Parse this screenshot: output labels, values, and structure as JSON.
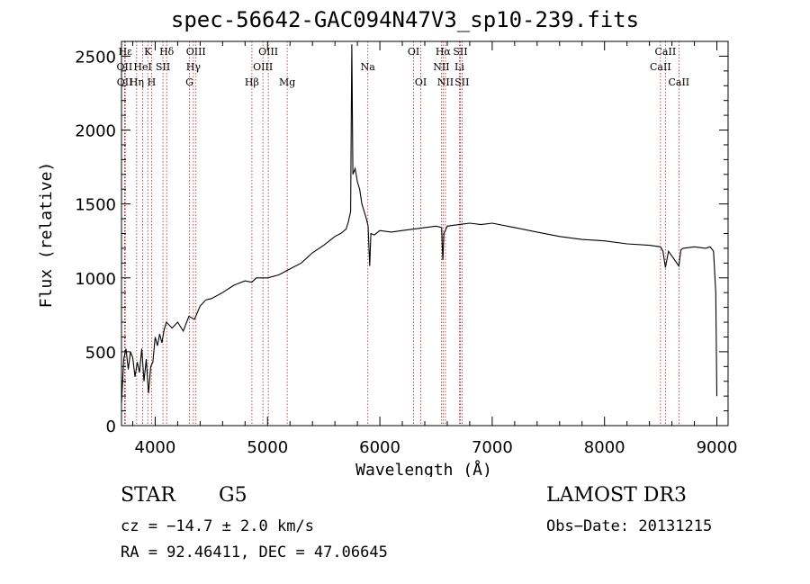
{
  "chart_data": {
    "type": "line",
    "title": "spec-56642-GAC094N47V3_sp10-239.fits",
    "xlabel": "Wavelength (Å)",
    "ylabel": "Flux (relative)",
    "xlim": [
      3700,
      9100
    ],
    "ylim": [
      0,
      2600
    ],
    "xticks": [
      "4000",
      "5000",
      "6000",
      "7000",
      "8000",
      "9000"
    ],
    "yticks": [
      "0",
      "500",
      "1000",
      "1500",
      "2000",
      "2500"
    ],
    "series": [
      {
        "name": "flux",
        "x": [
          3700,
          3720,
          3740,
          3760,
          3780,
          3800,
          3820,
          3840,
          3860,
          3880,
          3900,
          3920,
          3940,
          3960,
          3980,
          4000,
          4020,
          4040,
          4060,
          4080,
          4100,
          4150,
          4200,
          4250,
          4300,
          4350,
          4400,
          4450,
          4500,
          4600,
          4700,
          4800,
          4860,
          4900,
          5000,
          5100,
          5200,
          5300,
          5400,
          5500,
          5600,
          5650,
          5700,
          5720,
          5740,
          5750,
          5760,
          5780,
          5800,
          5820,
          5840,
          5860,
          5880,
          5895,
          5910,
          5920,
          5950,
          6000,
          6100,
          6200,
          6300,
          6400,
          6500,
          6550,
          6560,
          6563,
          6570,
          6600,
          6700,
          6800,
          6900,
          7000,
          7200,
          7400,
          7600,
          7800,
          8000,
          8200,
          8400,
          8498,
          8520,
          8542,
          8570,
          8662,
          8680,
          8700,
          8800,
          8900,
          8940,
          8970,
          8990,
          9000
        ],
        "y": [
          150,
          450,
          520,
          380,
          500,
          460,
          330,
          430,
          360,
          520,
          300,
          450,
          220,
          400,
          430,
          600,
          540,
          620,
          560,
          650,
          700,
          660,
          700,
          640,
          740,
          720,
          810,
          850,
          860,
          900,
          950,
          980,
          970,
          1000,
          1000,
          1020,
          1060,
          1100,
          1170,
          1220,
          1280,
          1300,
          1330,
          1380,
          1450,
          2580,
          1700,
          1740,
          1650,
          1600,
          1500,
          1450,
          1400,
          1350,
          1080,
          1300,
          1290,
          1320,
          1310,
          1320,
          1330,
          1340,
          1350,
          1340,
          1120,
          1150,
          1300,
          1350,
          1360,
          1370,
          1360,
          1370,
          1340,
          1310,
          1280,
          1260,
          1250,
          1230,
          1220,
          1210,
          1180,
          1070,
          1180,
          1080,
          1190,
          1200,
          1210,
          1200,
          1210,
          1180,
          900,
          200
        ]
      }
    ],
    "lines": [
      {
        "name": "Hε",
        "wl": 3734,
        "row": 0,
        "dx": 0
      },
      {
        "name": "OII",
        "wl": 3727,
        "row": 1,
        "dx": 0
      },
      {
        "name": "OII",
        "wl": 3729,
        "row": 2,
        "dx": 0
      },
      {
        "name": "Hη",
        "wl": 3835,
        "row": 2,
        "dx": 0
      },
      {
        "name": "HeI",
        "wl": 3889,
        "row": 1,
        "dx": 0
      },
      {
        "name": "K",
        "wl": 3934,
        "row": 0,
        "dx": 0
      },
      {
        "name": "H",
        "wl": 3968,
        "row": 2,
        "dx": 0
      },
      {
        "name": "SII",
        "wl": 4069,
        "row": 1,
        "dx": 0
      },
      {
        "name": "Hδ",
        "wl": 4102,
        "row": 0,
        "dx": 0
      },
      {
        "name": "G",
        "wl": 4305,
        "row": 2,
        "dx": 0
      },
      {
        "name": "Hγ",
        "wl": 4340,
        "row": 1,
        "dx": 0
      },
      {
        "name": "OIII",
        "wl": 4363,
        "row": 0,
        "dx": 0
      },
      {
        "name": "Hβ",
        "wl": 4861,
        "row": 2,
        "dx": 0
      },
      {
        "name": "OIII",
        "wl": 4959,
        "row": 1,
        "dx": 0
      },
      {
        "name": "OIII",
        "wl": 5007,
        "row": 0,
        "dx": 0
      },
      {
        "name": "Mg",
        "wl": 5175,
        "row": 2,
        "dx": 0
      },
      {
        "name": "Na",
        "wl": 5893,
        "row": 1,
        "dx": 0
      },
      {
        "name": "OI",
        "wl": 6300,
        "row": 0,
        "dx": 0
      },
      {
        "name": "OI",
        "wl": 6364,
        "row": 2,
        "dx": 0
      },
      {
        "name": "NII",
        "wl": 6548,
        "row": 1,
        "dx": 0
      },
      {
        "name": "Hα",
        "wl": 6563,
        "row": 0,
        "dx": 0
      },
      {
        "name": "NII",
        "wl": 6584,
        "row": 2,
        "dx": 0
      },
      {
        "name": "Li",
        "wl": 6708,
        "row": 1,
        "dx": 0
      },
      {
        "name": "SII",
        "wl": 6716,
        "row": 0,
        "dx": 0
      },
      {
        "name": "SII",
        "wl": 6731,
        "row": 2,
        "dx": 0
      },
      {
        "name": "CaII",
        "wl": 8498,
        "row": 1,
        "dx": 0
      },
      {
        "name": "CaII",
        "wl": 8542,
        "row": 0,
        "dx": 0
      },
      {
        "name": "CaII",
        "wl": 8662,
        "row": 2,
        "dx": 0
      }
    ],
    "grid": false,
    "legend": "none"
  },
  "info": {
    "class": "STAR",
    "subclass": "G5",
    "survey": "LAMOST DR3",
    "cz": "cz = −14.7 ± 2.0 km/s",
    "obs_date": "Obs−Date: 20131215",
    "radec": "RA =  92.46411, DEC =  47.06645"
  },
  "colors": {
    "line_marker": "#b22222",
    "axis": "#000000",
    "spectrum": "#000000"
  }
}
